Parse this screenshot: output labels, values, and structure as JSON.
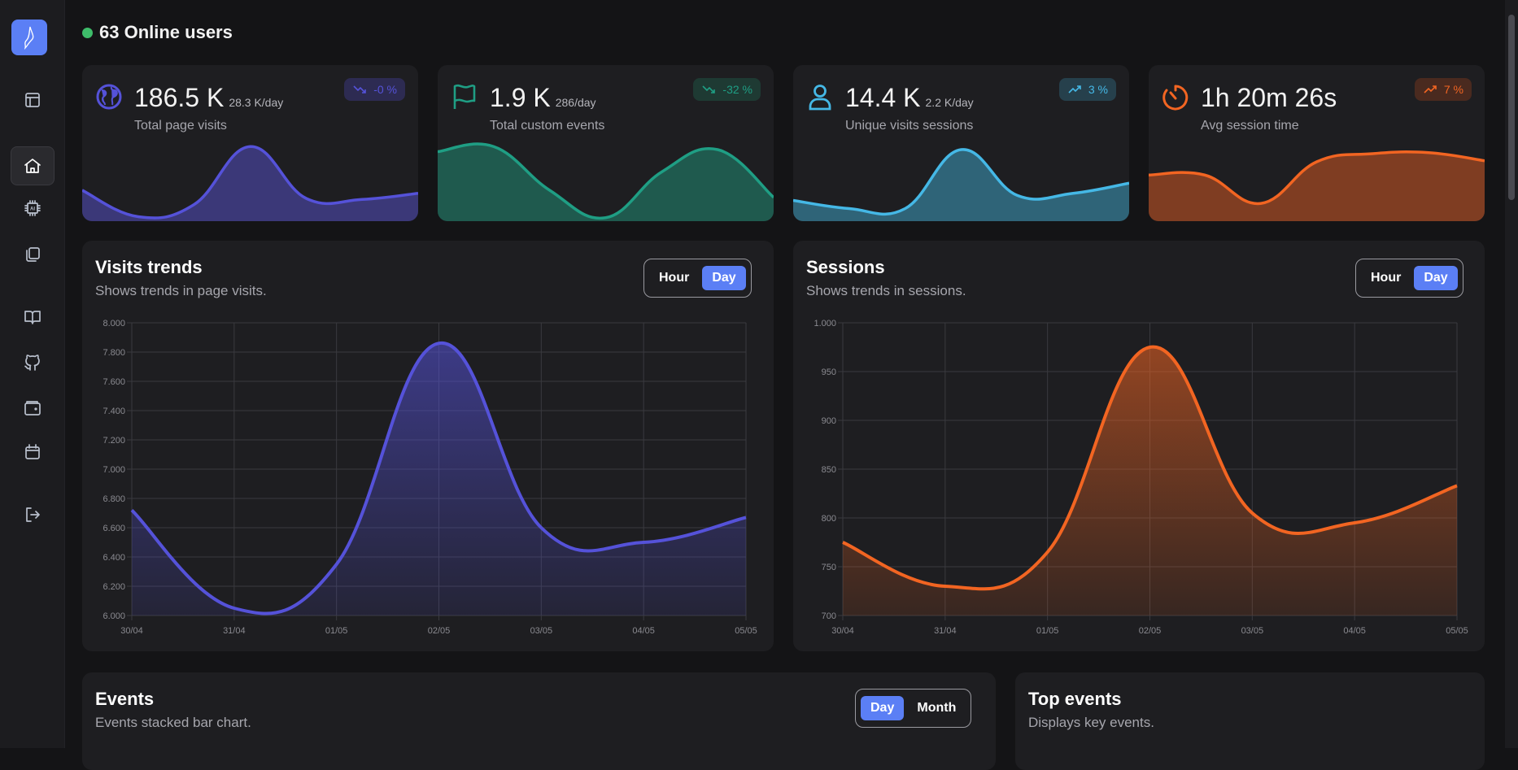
{
  "sidebar": {
    "items": [
      {
        "icon": "layout-icon"
      },
      {
        "icon": "home-icon",
        "selected": true
      },
      {
        "icon": "ai-chip-icon"
      },
      {
        "icon": "copy-icon"
      },
      {
        "icon": "book-icon"
      },
      {
        "icon": "github-icon"
      },
      {
        "icon": "wallet-icon"
      },
      {
        "icon": "calendar-icon"
      },
      {
        "icon": "logout-icon"
      }
    ],
    "accent": "#5b7ff5"
  },
  "online": {
    "label": "63 Online users",
    "color": "#3ebd6a"
  },
  "stats": [
    {
      "value": "186.5 K",
      "rate": "28.3 K/day",
      "label": "Total page visits",
      "badge": "-0 %",
      "trend": "down",
      "icon": "globe-icon",
      "color": "#5552d9",
      "fill": "#3b3878",
      "badge_bg": "#2d2b52",
      "spark": [
        28,
        2,
        14,
        71,
        20,
        19,
        25
      ]
    },
    {
      "value": "1.9 K",
      "rate": "286/day",
      "label": "Total custom events",
      "badge": "-32 %",
      "trend": "down",
      "icon": "flag-icon",
      "color": "#1f9e84",
      "fill": "#1f5a4e",
      "badge_bg": "#1e3a33",
      "spark": [
        66,
        71,
        28,
        1,
        46,
        68,
        21
      ]
    },
    {
      "value": "14.4 K",
      "rate": "2.2 K/day",
      "label": "Unique visits sessions",
      "badge": "3 %",
      "trend": "up",
      "icon": "user-icon",
      "color": "#45b8e6",
      "fill": "#2f6478",
      "badge_bg": "#26404c",
      "spark": [
        18,
        10,
        10,
        68,
        23,
        25,
        35
      ]
    },
    {
      "value": "1h 20m 26s",
      "rate": "",
      "label": "Avg session time",
      "badge": "7 %",
      "trend": "up",
      "icon": "timer-icon",
      "color": "#f26522",
      "fill": "#7f3d22",
      "badge_bg": "#4a2a1f",
      "spark": [
        43,
        43,
        15,
        56,
        64,
        65,
        57
      ]
    }
  ],
  "visits": {
    "title": "Visits trends",
    "subtitle": "Shows trends in page visits.",
    "toggle": [
      "Hour",
      "Day"
    ],
    "active": "Day"
  },
  "sessions": {
    "title": "Sessions",
    "subtitle": "Shows trends in sessions.",
    "toggle": [
      "Hour",
      "Day"
    ],
    "active": "Day"
  },
  "events": {
    "title": "Events",
    "subtitle": "Events stacked bar chart.",
    "toggle": [
      "Day",
      "Month"
    ],
    "active": "Day"
  },
  "top_events": {
    "title": "Top events",
    "subtitle": "Displays key events."
  },
  "chart_data": [
    {
      "type": "area",
      "categories": [
        "30/04",
        "31/04",
        "01/05",
        "02/05",
        "03/05",
        "04/05",
        "05/05"
      ],
      "values": [
        6720,
        6050,
        6350,
        7860,
        6600,
        6500,
        6670
      ],
      "ylim": [
        6000,
        8000
      ],
      "yticks": [
        "6.000",
        "6.200",
        "6.400",
        "6.600",
        "6.800",
        "7.000",
        "7.200",
        "7.400",
        "7.600",
        "7.800",
        "8.000"
      ],
      "grid": true,
      "color": "#5552d9"
    },
    {
      "type": "area",
      "categories": [
        "30/04",
        "31/04",
        "01/05",
        "02/05",
        "03/05",
        "04/05",
        "05/05"
      ],
      "values": [
        775,
        730,
        765,
        975,
        805,
        795,
        833
      ],
      "ylim": [
        700,
        1000
      ],
      "yticks": [
        "700",
        "750",
        "800",
        "850",
        "900",
        "950",
        "1.000"
      ],
      "grid": true,
      "color": "#f26522"
    }
  ]
}
